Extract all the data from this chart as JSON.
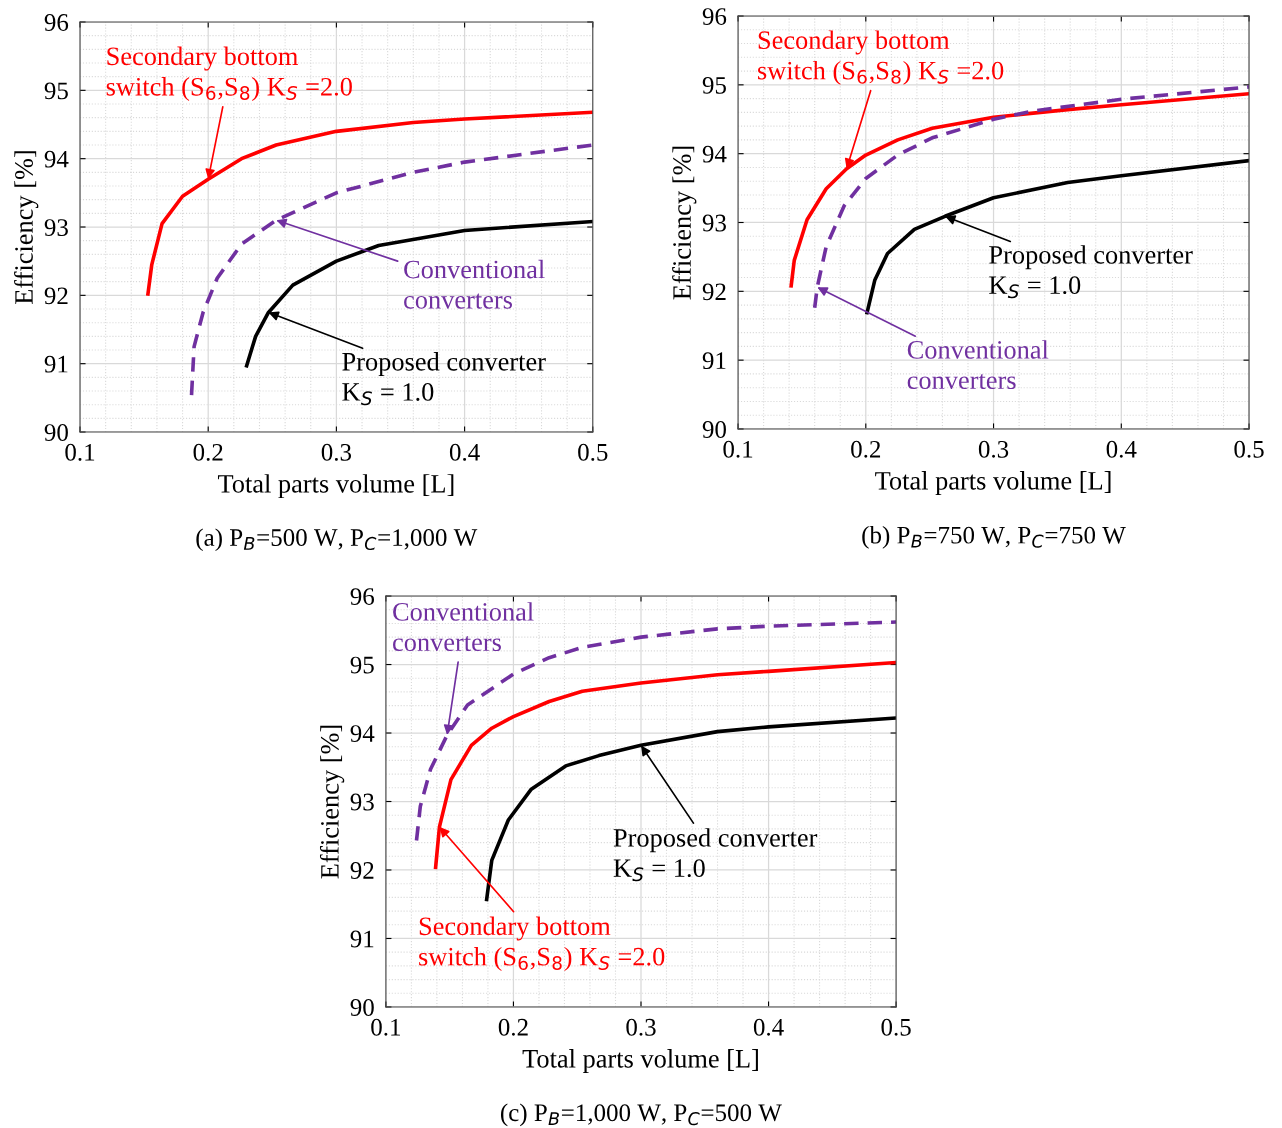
{
  "chart_data": [
    {
      "type": "line",
      "subtitle": "(a) P$_{B}$=500 W, P$_{C}$=1,000 W",
      "xlabel": "Total parts volume [L]",
      "ylabel": "Efficiency [%]",
      "xlim": [
        0.1,
        0.5
      ],
      "ylim": [
        90,
        96
      ],
      "xticks": [
        0.1,
        0.2,
        0.3,
        0.4,
        0.5
      ],
      "yticks": [
        90,
        91,
        92,
        93,
        94,
        95,
        96
      ],
      "grid": true,
      "series": [
        {
          "color": "#ff0000",
          "line_style": "solid",
          "x": [
            0.153,
            0.156,
            0.164,
            0.18,
            0.2,
            0.226,
            0.253,
            0.3,
            0.36,
            0.4,
            0.5
          ],
          "values": [
            92.02,
            92.45,
            93.05,
            93.45,
            93.7,
            94.0,
            94.2,
            94.4,
            94.53,
            94.58,
            94.68
          ]
        },
        {
          "color": "#7030a0",
          "line_style": "dashed",
          "x": [
            0.187,
            0.189,
            0.196,
            0.207,
            0.226,
            0.253,
            0.3,
            0.36,
            0.4,
            0.5
          ],
          "values": [
            90.54,
            91.25,
            91.75,
            92.25,
            92.75,
            93.1,
            93.5,
            93.8,
            93.95,
            94.2
          ]
        },
        {
          "color": "#000000",
          "line_style": "solid",
          "x": [
            0.23,
            0.237,
            0.247,
            0.266,
            0.3,
            0.333,
            0.4,
            0.5
          ],
          "values": [
            90.97,
            91.4,
            91.75,
            92.15,
            92.5,
            92.73,
            92.95,
            93.08
          ]
        }
      ],
      "annotations": [
        {
          "text": "Secondary bottom\nswitch (S$_{6}$,S$_{8}$) K$_{S}$ =2.0",
          "x": 0.2,
          "y": 93.7
        },
        {
          "text": "Conventional\nconverters",
          "x": 0.253,
          "y": 93.1
        },
        {
          "text": "Proposed converter\nK$_{S}$ = 1.0",
          "x": 0.247,
          "y": 91.75
        }
      ]
    },
    {
      "type": "line",
      "subtitle": "(b) P$_{B}$=750 W, P$_{C}$=750 W",
      "xlabel": "Total parts volume [L]",
      "ylabel": "Efficiency [%]",
      "xlim": [
        0.1,
        0.5
      ],
      "ylim": [
        90,
        96
      ],
      "xticks": [
        0.1,
        0.2,
        0.3,
        0.4,
        0.5
      ],
      "yticks": [
        90,
        91,
        92,
        93,
        94,
        95,
        96
      ],
      "grid": true,
      "series": [
        {
          "color": "#ff0000",
          "line_style": "solid",
          "x": [
            0.1416,
            0.144,
            0.154,
            0.169,
            0.185,
            0.2,
            0.225,
            0.252,
            0.3,
            0.358,
            0.4,
            0.5
          ],
          "values": [
            92.08,
            92.45,
            93.04,
            93.49,
            93.78,
            93.98,
            94.2,
            94.37,
            94.53,
            94.64,
            94.71,
            94.87
          ]
        },
        {
          "color": "#7030a0",
          "line_style": "dashed",
          "x": [
            0.16,
            0.162,
            0.169,
            0.183,
            0.2,
            0.225,
            0.252,
            0.3,
            0.331,
            0.4,
            0.5
          ],
          "values": [
            91.76,
            92.06,
            92.65,
            93.24,
            93.64,
            93.98,
            94.23,
            94.5,
            94.62,
            94.79,
            94.97
          ]
        },
        {
          "color": "#000000",
          "line_style": "solid",
          "x": [
            0.201,
            0.207,
            0.217,
            0.238,
            0.262,
            0.3,
            0.358,
            0.4,
            0.5
          ],
          "values": [
            91.69,
            92.16,
            92.55,
            92.9,
            93.09,
            93.36,
            93.58,
            93.68,
            93.9
          ]
        }
      ],
      "annotations": [
        {
          "text": "Secondary bottom\nswitch (S$_{6}$,S$_{8}$) K$_{S}$ =2.0",
          "x": 0.185,
          "y": 93.78
        },
        {
          "text": "Proposed converter\nK$_{S}$ = 1.0",
          "x": 0.262,
          "y": 93.09
        },
        {
          "text": "Conventional\nconverters",
          "x": 0.162,
          "y": 92.06
        }
      ]
    },
    {
      "type": "line",
      "subtitle": "(c) P$_{B}$=1,000 W, P$_{C}$=500 W",
      "xlabel": "Total parts volume [L]",
      "ylabel": "Efficiency [%]",
      "xlim": [
        0.1,
        0.5
      ],
      "ylim": [
        90,
        96
      ],
      "xticks": [
        0.1,
        0.2,
        0.3,
        0.4,
        0.5
      ],
      "yticks": [
        90,
        91,
        92,
        93,
        94,
        95,
        96
      ],
      "grid": true,
      "series": [
        {
          "color": "#7030a0",
          "line_style": "dashed",
          "x": [
            0.124,
            0.127,
            0.135,
            0.148,
            0.164,
            0.2,
            0.228,
            0.254,
            0.3,
            0.36,
            0.4,
            0.5
          ],
          "values": [
            92.43,
            92.93,
            93.47,
            93.97,
            94.41,
            94.86,
            95.1,
            95.25,
            95.4,
            95.52,
            95.56,
            95.62
          ]
        },
        {
          "color": "#ff0000",
          "line_style": "solid",
          "x": [
            0.139,
            0.142,
            0.151,
            0.167,
            0.183,
            0.2,
            0.228,
            0.254,
            0.3,
            0.36,
            0.4,
            0.5
          ],
          "values": [
            92.04,
            92.63,
            93.32,
            93.82,
            94.07,
            94.24,
            94.46,
            94.61,
            94.73,
            94.85,
            94.9,
            95.03
          ]
        },
        {
          "color": "#000000",
          "line_style": "solid",
          "x": [
            0.179,
            0.183,
            0.196,
            0.214,
            0.241,
            0.267,
            0.3,
            0.36,
            0.4,
            0.5
          ],
          "values": [
            91.57,
            92.14,
            92.73,
            93.18,
            93.52,
            93.67,
            93.82,
            94.02,
            94.09,
            94.22
          ]
        }
      ],
      "annotations": [
        {
          "text": "Conventional\nconverters",
          "x": 0.148,
          "y": 93.97
        },
        {
          "text": "Proposed converter\nK$_{S}$ = 1.0",
          "x": 0.3,
          "y": 93.82
        },
        {
          "text": "Secondary bottom\nswitch (S$_{6}$,S$_{8}$) K$_{S}$ =2.0",
          "x": 0.142,
          "y": 92.63
        }
      ]
    }
  ]
}
